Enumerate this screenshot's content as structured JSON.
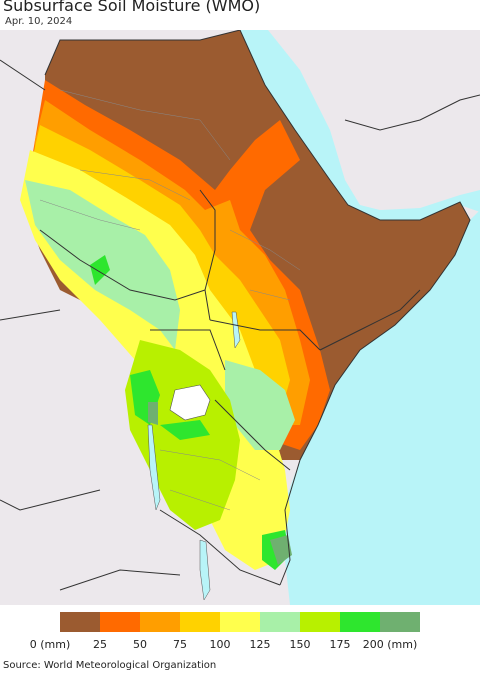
{
  "header": {
    "title": "Subsurface Soil Moisture (WMO)",
    "date": "Apr. 10, 2024"
  },
  "legend": {
    "unit_suffix": "(mm)",
    "bins": [
      {
        "label": "0 (mm)",
        "color": "#9b5b30"
      },
      {
        "label": "25",
        "color": "#ff6a00"
      },
      {
        "label": "50",
        "color": "#ff9e00"
      },
      {
        "label": "75",
        "color": "#ffd200"
      },
      {
        "label": "100",
        "color": "#ffff4d"
      },
      {
        "label": "125",
        "color": "#a8f0a8"
      },
      {
        "label": "150",
        "color": "#b8f000"
      },
      {
        "label": "175",
        "color": "#2ee62e"
      },
      {
        "label": "200 (mm)",
        "color": "#6fb070"
      }
    ]
  },
  "colors": {
    "ocean": "#b8f4f8",
    "land_nodata": "#ece8ec",
    "border": "#333333"
  },
  "footer": {
    "source": "Source: World Meteorological Organization"
  }
}
